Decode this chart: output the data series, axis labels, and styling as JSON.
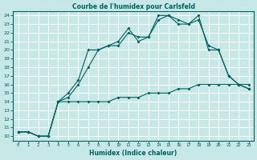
{
  "title": "Courbe de l'humidex pour Carlsfeld",
  "xlabel": "Humidex (Indice chaleur)",
  "xlim": [
    -0.5,
    23.5
  ],
  "ylim": [
    9.5,
    24.5
  ],
  "yticks": [
    10,
    11,
    12,
    13,
    14,
    15,
    16,
    17,
    18,
    19,
    20,
    21,
    22,
    23,
    24
  ],
  "xticks": [
    0,
    1,
    2,
    3,
    4,
    5,
    6,
    7,
    8,
    9,
    10,
    11,
    12,
    13,
    14,
    15,
    16,
    17,
    18,
    19,
    20,
    21,
    22,
    23
  ],
  "bg_color": "#c8e8e8",
  "line_color": "#006060",
  "grid_color": "#ffffff",
  "line1_x": [
    0,
    1,
    2,
    3,
    4,
    5,
    6,
    7,
    8,
    9,
    10,
    11,
    12,
    13,
    14,
    15,
    16,
    17,
    18,
    19,
    20,
    21,
    22,
    23
  ],
  "line1_y": [
    10.5,
    10.5,
    10,
    10,
    14,
    15,
    16.5,
    20,
    20,
    20.5,
    20.5,
    22,
    21.5,
    21.5,
    23.5,
    24,
    23.5,
    23,
    23.5,
    20.5,
    20,
    17,
    16,
    15.5
  ],
  "line2_x": [
    0,
    1,
    2,
    3,
    4,
    5,
    6,
    7,
    8,
    9,
    10,
    11,
    12,
    13,
    14,
    15,
    16,
    17,
    18,
    19,
    20,
    21,
    22,
    23
  ],
  "line2_y": [
    10.5,
    10.5,
    10,
    10,
    14,
    14.5,
    16,
    18,
    20,
    20.5,
    21,
    22.5,
    21,
    21.5,
    24,
    24,
    23,
    23,
    24,
    20,
    20,
    17,
    16,
    15.5
  ],
  "line3_x": [
    0,
    1,
    2,
    3,
    4,
    5,
    6,
    7,
    8,
    9,
    10,
    11,
    12,
    13,
    14,
    15,
    16,
    17,
    18,
    19,
    20,
    21,
    22,
    23
  ],
  "line3_y": [
    10.5,
    10.5,
    10,
    10,
    14,
    14,
    14,
    14,
    14,
    14,
    14.5,
    14.5,
    14.5,
    15,
    15,
    15,
    15.5,
    15.5,
    16,
    16,
    16,
    16,
    16,
    16
  ]
}
